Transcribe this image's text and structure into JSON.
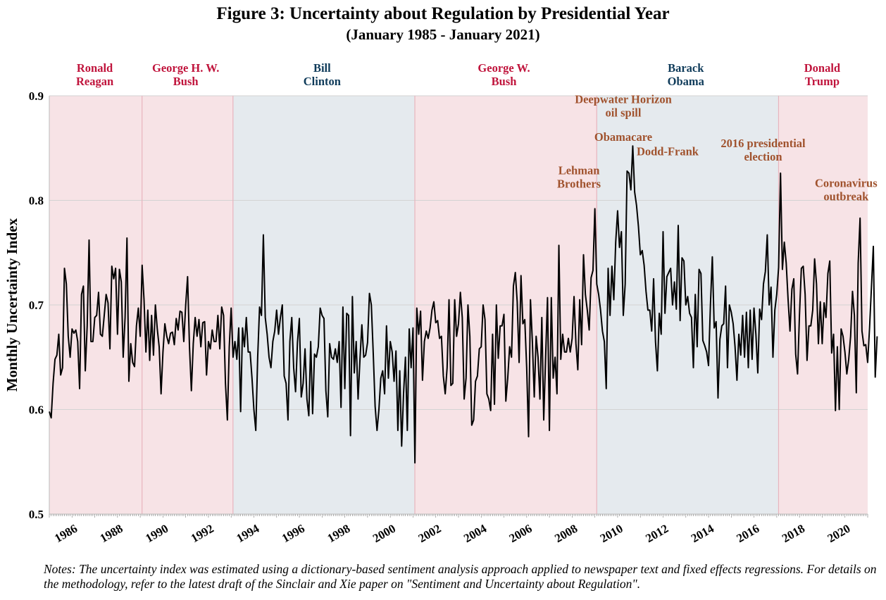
{
  "chart_data": {
    "type": "line",
    "title": "Figure 3: Uncertainty about Regulation by Presidential Year",
    "subtitle": "(January 1985 - January 2021)",
    "xlabel": "",
    "ylabel": "Monthly Uncertainty Index",
    "xlim": [
      1985.0,
      2021.0
    ],
    "ylim": [
      0.5,
      0.9
    ],
    "yticks": [
      "0.5",
      "0.6",
      "0.7",
      "0.8",
      "0.9"
    ],
    "xticks": [
      "1986",
      "1988",
      "1990",
      "1992",
      "1994",
      "1996",
      "1998",
      "2000",
      "2002",
      "2004",
      "2006",
      "2008",
      "2010",
      "2012",
      "2014",
      "2016",
      "2018",
      "2020"
    ],
    "grid": true,
    "line_color": "#000000",
    "presidents": [
      {
        "lines": [
          "Ronald",
          "Reagan"
        ],
        "start": 1985.0,
        "end": 1989.08,
        "party": "republican",
        "label_x": 1987.0
      },
      {
        "lines": [
          "George H. W.",
          "Bush"
        ],
        "start": 1989.08,
        "end": 1993.08,
        "party": "republican",
        "label_x": 1991.0
      },
      {
        "lines": [
          "Bill",
          "Clinton"
        ],
        "start": 1993.08,
        "end": 2001.08,
        "party": "democrat",
        "label_x": 1997.0
      },
      {
        "lines": [
          "George W.",
          "Bush"
        ],
        "start": 2001.08,
        "end": 2009.08,
        "party": "republican",
        "label_x": 2005.0
      },
      {
        "lines": [
          "Barack",
          "Obama"
        ],
        "start": 2009.08,
        "end": 2017.08,
        "party": "democrat",
        "label_x": 2013.0
      },
      {
        "lines": [
          "Donald",
          "Trump"
        ],
        "start": 2017.08,
        "end": 2021.0,
        "party": "republican",
        "label_x": 2019.0
      }
    ],
    "colors": {
      "republican_fill": "#f7e3e6",
      "democrat_fill": "#e5eaee",
      "republican_text": "#c0143c",
      "democrat_text": "#0f3b5a",
      "annotation_text": "#a0522d",
      "grid": "#d3d3d3",
      "boundary": "#e8b4bd"
    },
    "annotations": [
      {
        "lines": [
          "Lehman",
          "Brothers"
        ],
        "x": 2008.3,
        "y": 0.812
      },
      {
        "lines": [
          "Deepwater Horizon",
          "oil spill"
        ],
        "x": 2010.25,
        "y": 0.88
      },
      {
        "lines": [
          "Obamacare"
        ],
        "x": 2010.25,
        "y": 0.857
      },
      {
        "lines": [
          "Dodd-Frank"
        ],
        "x": 2012.2,
        "y": 0.843
      },
      {
        "lines": [
          "2016 presidential",
          "election"
        ],
        "x": 2016.4,
        "y": 0.838
      },
      {
        "lines": [
          "Coronavirus",
          "outbreak"
        ],
        "x": 2020.05,
        "y": 0.8
      },
      {
        "lines": [],
        "x": 0,
        "y": 0
      }
    ],
    "series": [
      {
        "x_start": 1985.0,
        "step": 0.08333,
        "values": [
          0.598,
          0.592,
          0.625,
          0.648,
          0.652,
          0.672,
          0.633,
          0.64,
          0.735,
          0.72,
          0.67,
          0.65,
          0.677,
          0.673,
          0.676,
          0.665,
          0.62,
          0.71,
          0.718,
          0.637,
          0.68,
          0.762,
          0.665,
          0.665,
          0.688,
          0.69,
          0.712,
          0.672,
          0.67,
          0.69,
          0.71,
          0.702,
          0.658,
          0.737,
          0.725,
          0.735,
          0.672,
          0.734,
          0.722,
          0.65,
          0.688,
          0.764,
          0.627,
          0.663,
          0.645,
          0.641,
          0.68,
          0.697,
          0.67,
          0.738,
          0.705,
          0.655,
          0.695,
          0.647,
          0.69,
          0.652,
          0.7,
          0.677,
          0.66,
          0.615,
          0.655,
          0.682,
          0.67,
          0.663,
          0.673,
          0.674,
          0.662,
          0.687,
          0.676,
          0.694,
          0.693,
          0.665,
          0.7,
          0.727,
          0.66,
          0.618,
          0.663,
          0.688,
          0.67,
          0.686,
          0.66,
          0.683,
          0.684,
          0.633,
          0.665,
          0.658,
          0.676,
          0.665,
          0.665,
          0.69,
          0.658,
          0.698,
          0.69,
          0.625,
          0.59,
          0.66,
          0.697,
          0.65,
          0.665,
          0.648,
          0.678,
          0.598,
          0.678,
          0.66,
          0.688,
          0.655,
          0.655,
          0.63,
          0.6,
          0.58,
          0.65,
          0.698,
          0.69,
          0.767,
          0.688,
          0.672,
          0.65,
          0.64,
          0.665,
          0.675,
          0.695,
          0.672,
          0.688,
          0.7,
          0.632,
          0.625,
          0.59,
          0.665,
          0.688,
          0.64,
          0.617,
          0.664,
          0.687,
          0.612,
          0.625,
          0.658,
          0.61,
          0.594,
          0.665,
          0.596,
          0.653,
          0.65,
          0.66,
          0.697,
          0.69,
          0.687,
          0.618,
          0.593,
          0.663,
          0.65,
          0.648,
          0.658,
          0.645,
          0.665,
          0.602,
          0.698,
          0.62,
          0.692,
          0.69,
          0.575,
          0.708,
          0.635,
          0.665,
          0.61,
          0.648,
          0.681,
          0.65,
          0.652,
          0.664,
          0.711,
          0.7,
          0.654,
          0.603,
          0.58,
          0.6,
          0.63,
          0.637,
          0.615,
          0.68,
          0.63,
          0.665,
          0.655,
          0.627,
          0.656,
          0.58,
          0.637,
          0.565,
          0.615,
          0.65,
          0.58,
          0.677,
          0.64,
          0.678,
          0.549,
          0.697,
          0.672,
          0.694,
          0.628,
          0.665,
          0.675,
          0.668,
          0.678,
          0.695,
          0.703,
          0.683,
          0.685,
          0.668,
          0.67,
          0.632,
          0.615,
          0.64,
          0.705,
          0.623,
          0.625,
          0.705,
          0.67,
          0.682,
          0.712,
          0.688,
          0.61,
          0.63,
          0.7,
          0.67,
          0.585,
          0.59,
          0.627,
          0.632,
          0.658,
          0.66,
          0.7,
          0.686,
          0.615,
          0.61,
          0.599,
          0.672,
          0.605,
          0.7,
          0.649,
          0.68,
          0.68,
          0.691,
          0.608,
          0.63,
          0.66,
          0.65,
          0.718,
          0.731,
          0.703,
          0.645,
          0.728,
          0.682,
          0.686,
          0.64,
          0.574,
          0.705,
          0.665,
          0.612,
          0.67,
          0.65,
          0.61,
          0.688,
          0.59,
          0.65,
          0.707,
          0.58,
          0.707,
          0.63,
          0.65,
          0.615,
          0.757,
          0.648,
          0.672,
          0.655,
          0.655,
          0.668,
          0.655,
          0.668,
          0.708,
          0.663,
          0.638,
          0.705,
          0.662,
          0.748,
          0.71,
          0.695,
          0.676,
          0.726,
          0.733,
          0.792,
          0.72,
          0.71,
          0.695,
          0.675,
          0.665,
          0.62,
          0.735,
          0.69,
          0.737,
          0.705,
          0.76,
          0.79,
          0.755,
          0.77,
          0.69,
          0.72,
          0.828,
          0.826,
          0.81,
          0.852,
          0.808,
          0.795,
          0.775,
          0.748,
          0.752,
          0.738,
          0.713,
          0.695,
          0.695,
          0.675,
          0.725,
          0.665,
          0.637,
          0.692,
          0.672,
          0.77,
          0.692,
          0.727,
          0.731,
          0.735,
          0.7,
          0.722,
          0.696,
          0.776,
          0.685,
          0.745,
          0.742,
          0.7,
          0.708,
          0.692,
          0.688,
          0.64,
          0.71,
          0.66,
          0.734,
          0.73,
          0.666,
          0.661,
          0.655,
          0.642,
          0.7,
          0.746,
          0.678,
          0.684,
          0.611,
          0.667,
          0.68,
          0.682,
          0.718,
          0.64,
          0.7,
          0.693,
          0.682,
          0.66,
          0.628,
          0.672,
          0.652,
          0.69,
          0.65,
          0.693,
          0.64,
          0.695,
          0.648,
          0.697,
          0.672,
          0.635,
          0.696,
          0.686,
          0.72,
          0.732,
          0.767,
          0.7,
          0.717,
          0.65,
          0.695,
          0.71,
          0.736,
          0.826,
          0.734,
          0.76,
          0.74,
          0.705,
          0.675,
          0.715,
          0.725,
          0.653,
          0.634,
          0.69,
          0.735,
          0.737,
          0.71,
          0.647,
          0.68,
          0.68,
          0.695,
          0.744,
          0.72,
          0.663,
          0.703,
          0.663,
          0.702,
          0.688,
          0.73,
          0.742,
          0.654,
          0.672,
          0.599,
          0.66,
          0.6,
          0.677,
          0.67,
          0.655,
          0.634,
          0.648,
          0.67,
          0.713,
          0.69,
          0.616,
          0.74,
          0.783,
          0.675,
          0.661,
          0.662,
          0.645,
          0.678,
          0.717,
          0.756,
          0.631,
          0.67
        ]
      }
    ]
  },
  "notes": "Notes: The uncertainty index was estimated using a dictionary-based sentiment analysis approach applied to newspaper text and fixed effects regressions. For details on the methodology, refer to the latest draft of the Sinclair and Xie paper on \"Sentiment and Uncertainty about Regulation\"."
}
